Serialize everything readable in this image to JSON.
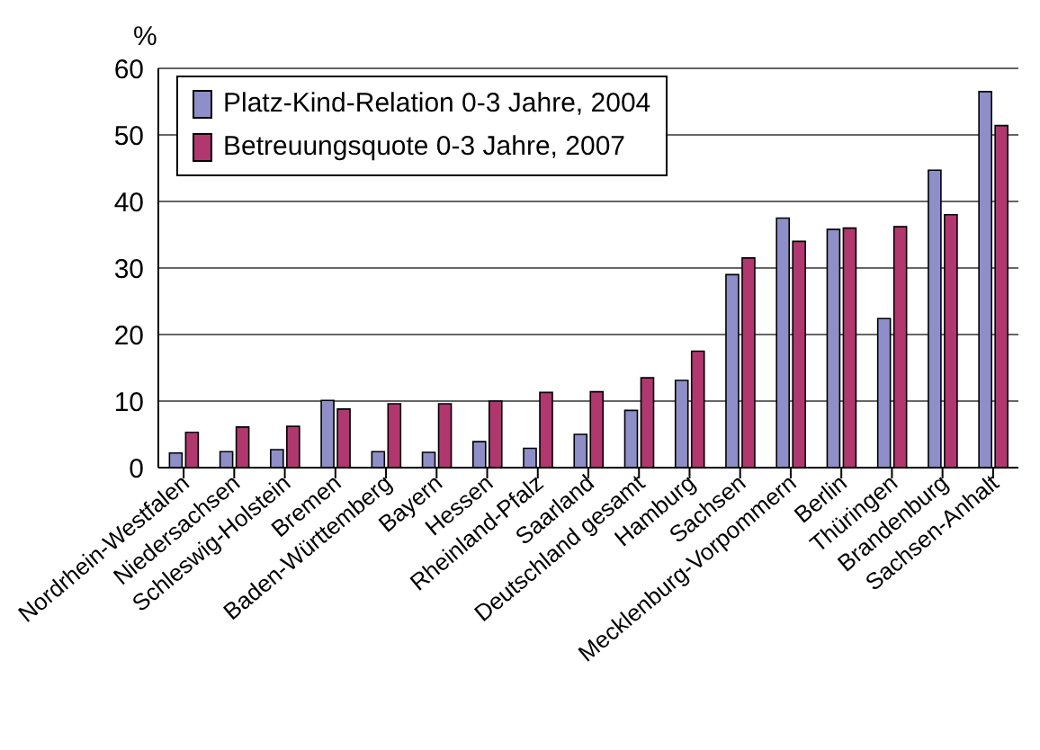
{
  "chart_data": {
    "type": "bar",
    "ylabel": "%",
    "categories": [
      "Nordrhein-Westfalen",
      "Niedersachsen",
      "Schleswig-Holstein",
      "Bremen",
      "Baden-Württemberg",
      "Bayern",
      "Hessen",
      "Rheinland-Pfalz",
      "Saarland",
      "Deutschland gesamt",
      "Hamburg",
      "Sachsen",
      "Mecklenburg-Vorpommern",
      "Berlin",
      "Thüringen",
      "Brandenburg",
      "Sachsen-Anhalt"
    ],
    "series": [
      {
        "name": "Platz-Kind-Relation 0-3 Jahre, 2004",
        "color": "#8e8ec8",
        "values": [
          2.2,
          2.4,
          2.7,
          10.1,
          2.4,
          2.3,
          3.9,
          2.9,
          5,
          8.6,
          13.1,
          29,
          37.5,
          35.8,
          22.4,
          44.7,
          56.5
        ]
      },
      {
        "name": "Betreuungsquote 0-3 Jahre, 2007",
        "color": "#b0386e",
        "values": [
          5.3,
          6.1,
          6.2,
          8.8,
          9.6,
          9.6,
          10,
          11.3,
          11.4,
          13.5,
          17.5,
          31.5,
          34,
          36,
          36.2,
          38,
          51.4
        ]
      }
    ],
    "ylim": [
      0,
      60
    ],
    "yticks": [
      0,
      10,
      20,
      30,
      40,
      50,
      60
    ],
    "grid": "y",
    "legend": "top left"
  }
}
